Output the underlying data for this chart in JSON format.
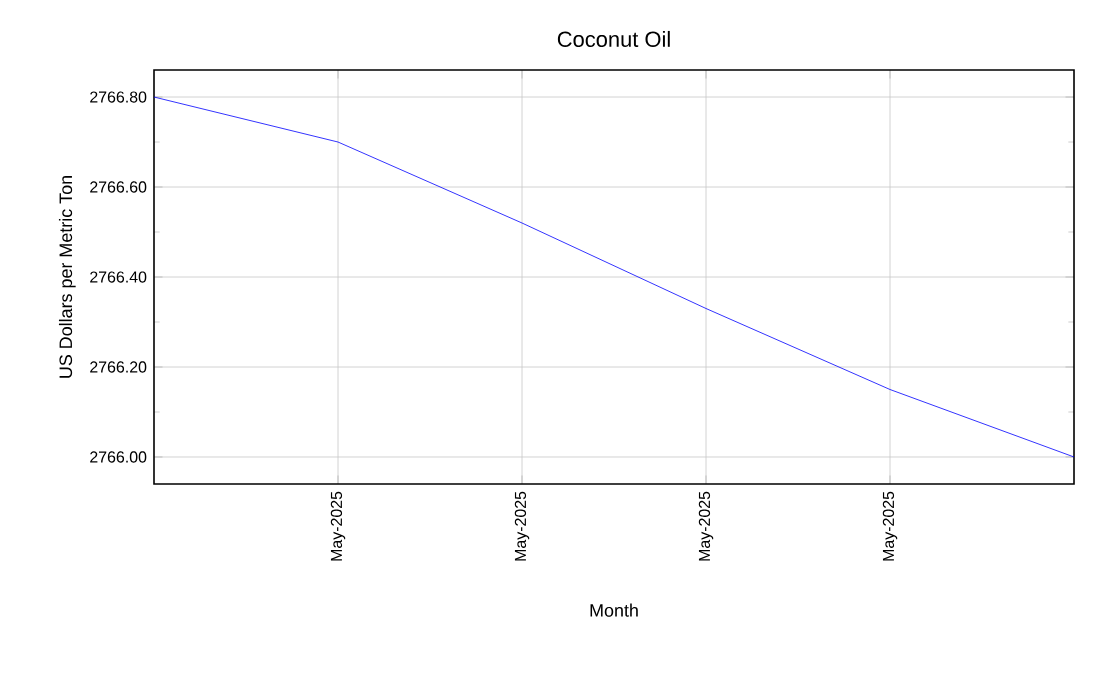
{
  "chart_data": {
    "type": "line",
    "title": "Coconut Oil",
    "xlabel": "Month",
    "ylabel": "US Dollars per Metric Ton",
    "categories": [
      null,
      "May-2025",
      "May-2025",
      "May-2025",
      "May-2025",
      null
    ],
    "series": [
      {
        "color": "#0000ff",
        "values": [
          2766.8,
          2766.7,
          2766.52,
          2766.33,
          2766.15,
          2766.0
        ]
      }
    ],
    "ylim": [
      2765.94,
      2766.86
    ],
    "yticks": [
      {
        "value": 2766.0,
        "label": "2766.00"
      },
      {
        "value": 2766.2,
        "label": "2766.20"
      },
      {
        "value": 2766.4,
        "label": "2766.40"
      },
      {
        "value": 2766.6,
        "label": "2766.60"
      },
      {
        "value": 2766.8,
        "label": "2766.80"
      }
    ],
    "grid": true,
    "marker": "none",
    "line_style": "solid"
  }
}
